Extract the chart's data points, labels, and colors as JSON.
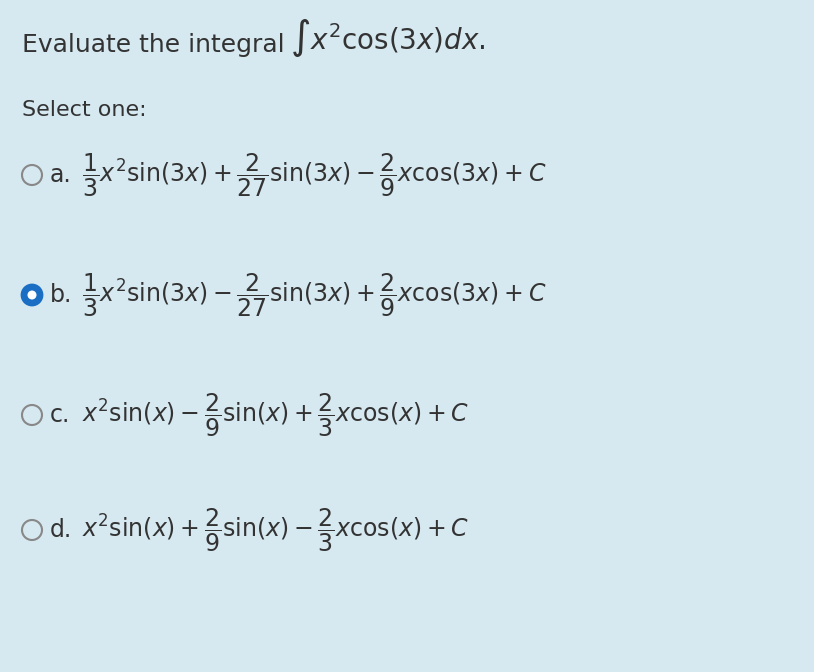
{
  "background_color": "#d6e8f0",
  "title_text": "Evaluate the integral",
  "integral_expr": "$\\int x^2 \\cos(3x)dx.$",
  "select_one": "Select one:",
  "options": [
    {
      "label": "a.",
      "formula": "$\\dfrac{1}{3}x^2 \\sin(3x) + \\dfrac{2}{27}\\sin(3x) - \\dfrac{2}{9}x\\cos(3x) + C$",
      "selected": false
    },
    {
      "label": "b.",
      "formula": "$\\dfrac{1}{3}x^2 \\sin(3x) - \\dfrac{2}{27}\\sin(3x) + \\dfrac{2}{9}x\\cos(3x) + C$",
      "selected": true
    },
    {
      "label": "c.",
      "formula": "$x^2 \\sin(x) - \\dfrac{2}{9}\\sin(x) + \\dfrac{2}{3}x\\cos(x) + C$",
      "selected": false
    },
    {
      "label": "d.",
      "formula": "$x^2 \\sin(x) + \\dfrac{2}{9}\\sin(x) - \\dfrac{2}{3}x\\cos(x) + C$",
      "selected": false
    }
  ],
  "radio_color_unselected": "#d6e8f0",
  "radio_color_selected_fill": "#1a6fc4",
  "radio_color_selected_border": "#1a6fc4",
  "radio_border_color": "#888888",
  "text_color": "#333333",
  "font_size_title": 18,
  "font_size_select": 16,
  "font_size_option": 17
}
